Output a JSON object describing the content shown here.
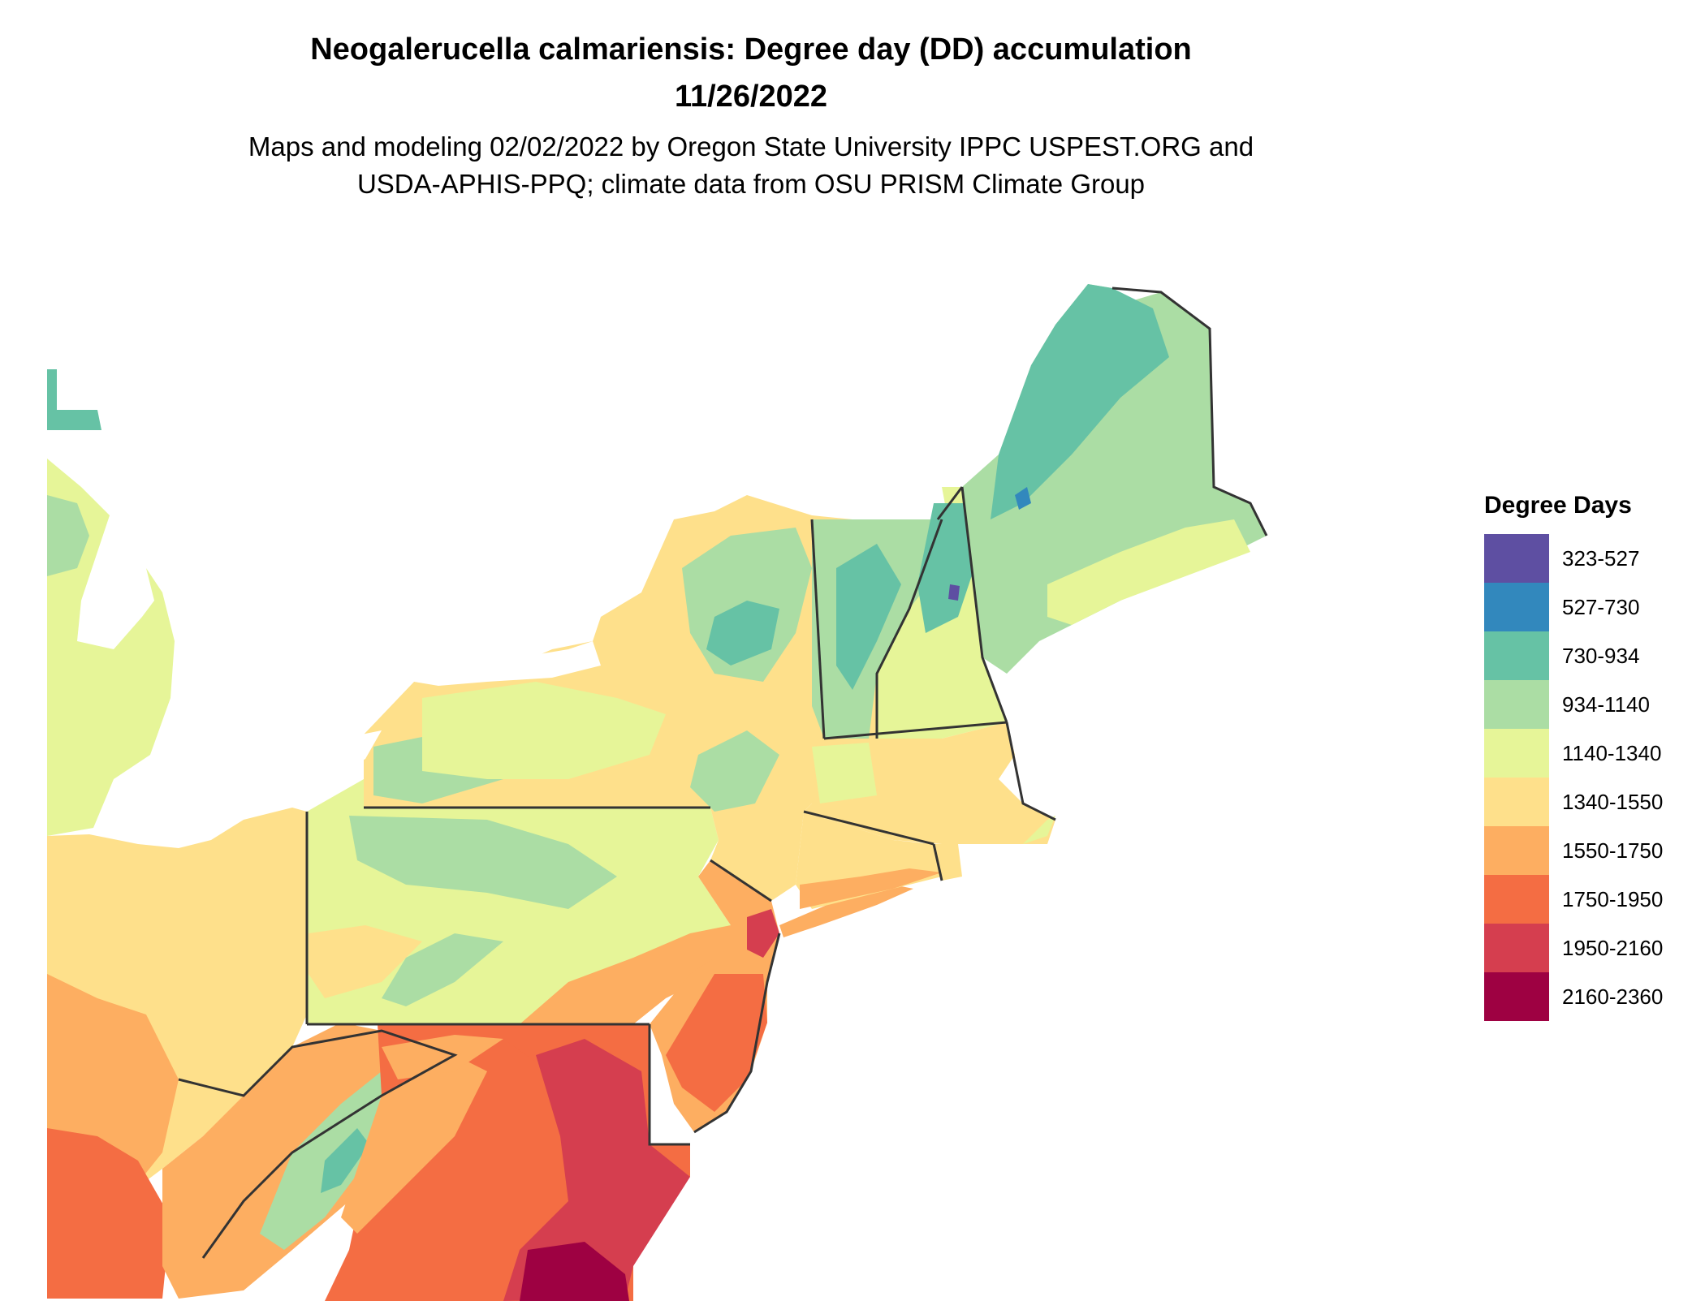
{
  "header": {
    "title_line1": "Neogalerucella calmariensis: Degree day (DD) accumulation",
    "title_line2": "11/26/2022",
    "subtitle_line1": "Maps and modeling 02/02/2022 by Oregon State University IPPC USPEST.ORG and",
    "subtitle_line2": "USDA-APHIS-PPQ; climate data from OSU PRISM Climate Group"
  },
  "legend": {
    "title": "Degree Days",
    "items": [
      {
        "label": "323-527",
        "color": "#5e4fa2"
      },
      {
        "label": "527-730",
        "color": "#3288bd"
      },
      {
        "label": "730-934",
        "color": "#66c2a5"
      },
      {
        "label": "934-1140",
        "color": "#abdda4"
      },
      {
        "label": "1140-1340",
        "color": "#e6f598"
      },
      {
        "label": "1340-1550",
        "color": "#fee08b"
      },
      {
        "label": "1550-1750",
        "color": "#fdae61"
      },
      {
        "label": "1750-1950",
        "color": "#f46d43"
      },
      {
        "label": "1950-2160",
        "color": "#d53e4f"
      },
      {
        "label": "2160-2360",
        "color": "#9e0142"
      }
    ]
  },
  "map": {
    "region": "Northeastern United States",
    "border_color": "#333333"
  }
}
